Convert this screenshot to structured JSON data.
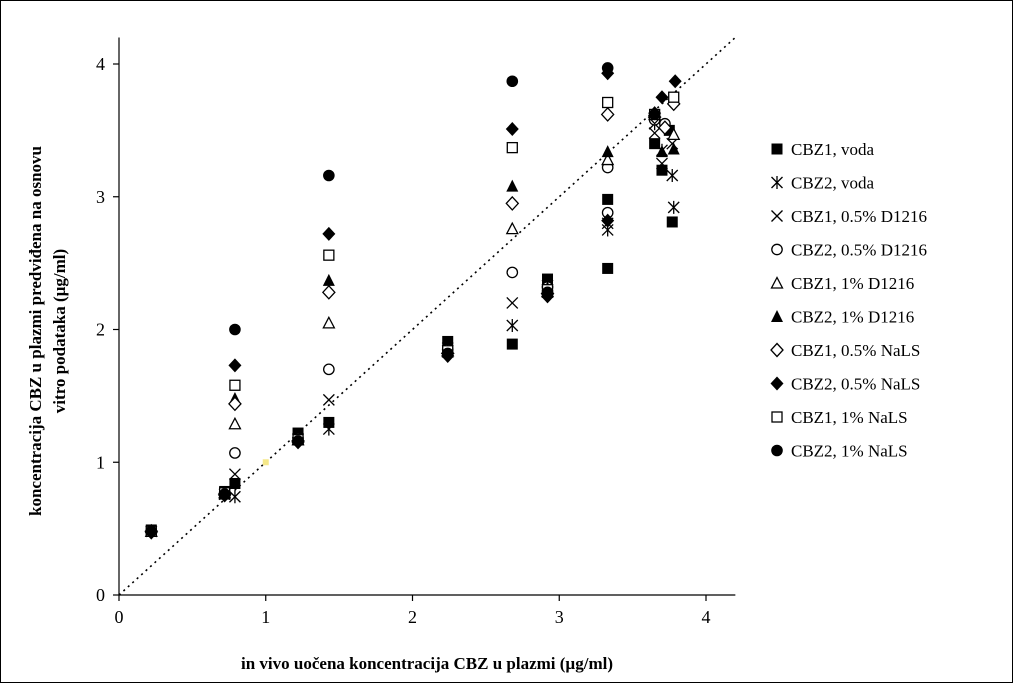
{
  "chart_data": {
    "type": "scatter",
    "title": "",
    "xlabel": "in vivo uočena koncentracija CBZ u plazmi (µg/ml)",
    "ylabel_lines": [
      "koncentracija CBZ u plazmi predviđena na osnovu",
      "vitro podataka (µg/ml)"
    ],
    "xlim": [
      0,
      4.2
    ],
    "ylim": [
      0,
      4.2
    ],
    "x_ticks": [
      0,
      1,
      2,
      3,
      4
    ],
    "y_ticks": [
      0,
      1,
      2,
      3,
      4
    ],
    "grid": false,
    "legend_position": "right",
    "identity_line": {
      "from": [
        0,
        0
      ],
      "to": [
        4.2,
        4.2
      ],
      "style": "dotted"
    },
    "extra_points": [
      {
        "x": 1.0,
        "y": 1.0,
        "color": "#f5e88a"
      }
    ],
    "series": [
      {
        "name": "CBZ1, voda",
        "marker": "square-filled",
        "points": [
          [
            0.22,
            0.49
          ],
          [
            0.72,
            0.78
          ],
          [
            0.79,
            0.84
          ],
          [
            1.22,
            1.22
          ],
          [
            1.43,
            1.3
          ],
          [
            2.24,
            1.91
          ],
          [
            2.68,
            1.89
          ],
          [
            2.92,
            2.38
          ],
          [
            3.33,
            2.98
          ],
          [
            3.33,
            2.46
          ],
          [
            3.65,
            3.4
          ],
          [
            3.7,
            3.2
          ],
          [
            3.75,
            3.5
          ],
          [
            3.77,
            2.81
          ]
        ]
      },
      {
        "name": "CBZ2, voda",
        "marker": "asterisk",
        "points": [
          [
            0.22,
            0.48
          ],
          [
            0.72,
            0.76
          ],
          [
            0.79,
            0.74
          ],
          [
            1.22,
            1.17
          ],
          [
            1.43,
            1.25
          ],
          [
            2.24,
            1.84
          ],
          [
            2.68,
            2.03
          ],
          [
            2.92,
            2.3
          ],
          [
            3.33,
            2.75
          ],
          [
            3.65,
            3.55
          ],
          [
            3.7,
            3.35
          ],
          [
            3.77,
            3.16
          ],
          [
            3.78,
            2.92
          ]
        ]
      },
      {
        "name": "CBZ1, 0.5% D1216",
        "marker": "x",
        "points": [
          [
            0.22,
            0.48
          ],
          [
            0.72,
            0.76
          ],
          [
            0.79,
            0.91
          ],
          [
            1.22,
            1.18
          ],
          [
            1.43,
            1.47
          ],
          [
            2.24,
            1.86
          ],
          [
            2.68,
            2.2
          ],
          [
            2.92,
            2.33
          ],
          [
            3.33,
            2.8
          ],
          [
            3.65,
            3.48
          ],
          [
            3.7,
            3.25
          ],
          [
            3.77,
            3.4
          ]
        ]
      },
      {
        "name": "CBZ2, 0.5% D1216",
        "marker": "circle-open",
        "points": [
          [
            0.22,
            0.48
          ],
          [
            0.72,
            0.77
          ],
          [
            0.79,
            1.07
          ],
          [
            1.22,
            1.18
          ],
          [
            1.43,
            1.7
          ],
          [
            2.24,
            1.85
          ],
          [
            2.68,
            2.43
          ],
          [
            2.92,
            2.32
          ],
          [
            3.33,
            3.22
          ],
          [
            3.33,
            2.88
          ],
          [
            3.65,
            3.58
          ],
          [
            3.72,
            3.55
          ]
        ]
      },
      {
        "name": "CBZ1, 1% D1216",
        "marker": "triangle-open",
        "points": [
          [
            0.22,
            0.48
          ],
          [
            0.72,
            0.77
          ],
          [
            0.79,
            1.29
          ],
          [
            1.22,
            1.17
          ],
          [
            1.43,
            2.05
          ],
          [
            2.24,
            1.84
          ],
          [
            2.68,
            2.76
          ],
          [
            2.92,
            2.31
          ],
          [
            3.33,
            3.28
          ],
          [
            3.65,
            3.62
          ],
          [
            3.78,
            3.47
          ]
        ]
      },
      {
        "name": "CBZ2, 1% D1216",
        "marker": "triangle-filled",
        "points": [
          [
            0.22,
            0.48
          ],
          [
            0.72,
            0.76
          ],
          [
            0.79,
            1.48
          ],
          [
            1.22,
            1.17
          ],
          [
            1.43,
            2.37
          ],
          [
            2.24,
            1.83
          ],
          [
            2.68,
            3.08
          ],
          [
            2.92,
            2.28
          ],
          [
            3.33,
            3.34
          ],
          [
            3.65,
            3.63
          ],
          [
            3.7,
            3.34
          ],
          [
            3.78,
            3.36
          ]
        ]
      },
      {
        "name": "CBZ1, 0.5% NaLS",
        "marker": "diamond-open",
        "points": [
          [
            0.22,
            0.48
          ],
          [
            0.72,
            0.76
          ],
          [
            0.79,
            1.44
          ],
          [
            1.22,
            1.16
          ],
          [
            1.43,
            2.28
          ],
          [
            2.24,
            1.82
          ],
          [
            2.68,
            2.95
          ],
          [
            2.92,
            2.27
          ],
          [
            3.33,
            3.62
          ],
          [
            3.65,
            3.6
          ],
          [
            3.72,
            3.52
          ],
          [
            3.78,
            3.7
          ]
        ]
      },
      {
        "name": "CBZ2, 0.5% NaLS",
        "marker": "diamond-filled",
        "points": [
          [
            0.22,
            0.47
          ],
          [
            0.72,
            0.75
          ],
          [
            0.79,
            1.73
          ],
          [
            1.22,
            1.15
          ],
          [
            1.43,
            2.72
          ],
          [
            2.24,
            1.8
          ],
          [
            2.68,
            3.51
          ],
          [
            2.92,
            2.25
          ],
          [
            3.33,
            3.93
          ],
          [
            3.33,
            2.82
          ],
          [
            3.65,
            3.63
          ],
          [
            3.7,
            3.75
          ],
          [
            3.79,
            3.87
          ]
        ]
      },
      {
        "name": "CBZ1, 1% NaLS",
        "marker": "square-open",
        "points": [
          [
            0.22,
            0.48
          ],
          [
            0.72,
            0.77
          ],
          [
            0.79,
            1.58
          ],
          [
            1.22,
            1.17
          ],
          [
            1.43,
            2.56
          ],
          [
            2.24,
            1.84
          ],
          [
            2.68,
            3.37
          ],
          [
            2.92,
            2.3
          ],
          [
            3.33,
            3.71
          ],
          [
            3.65,
            3.62
          ],
          [
            3.78,
            3.75
          ]
        ]
      },
      {
        "name": "CBZ2, 1% NaLS",
        "marker": "circle-filled",
        "points": [
          [
            0.22,
            0.48
          ],
          [
            0.72,
            0.76
          ],
          [
            0.79,
            2.0
          ],
          [
            1.22,
            1.16
          ],
          [
            1.43,
            3.16
          ],
          [
            2.24,
            1.82
          ],
          [
            2.68,
            3.87
          ],
          [
            2.92,
            2.28
          ],
          [
            3.33,
            3.97
          ],
          [
            3.65,
            3.62
          ]
        ]
      }
    ]
  }
}
